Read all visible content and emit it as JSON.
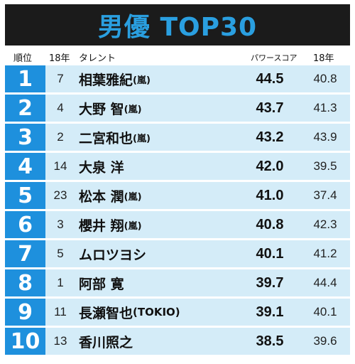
{
  "title": "男優 TOP30",
  "headers": {
    "rank": "順位",
    "prev_year": "18年",
    "talent": "タレント",
    "power_score": "パワースコア",
    "last_year": "18年"
  },
  "rows": [
    {
      "rank": "1",
      "prev": "7",
      "name": "相葉雅紀",
      "group": "(嵐)",
      "score": "44.5",
      "last": "40.8"
    },
    {
      "rank": "2",
      "prev": "4",
      "name": "大野 智",
      "group": "(嵐)",
      "score": "43.7",
      "last": "41.3"
    },
    {
      "rank": "3",
      "prev": "2",
      "name": "二宮和也",
      "group": "(嵐)",
      "score": "43.2",
      "last": "43.9"
    },
    {
      "rank": "4",
      "prev": "14",
      "name": "大泉 洋",
      "group": "",
      "score": "42.0",
      "last": "39.5"
    },
    {
      "rank": "5",
      "prev": "23",
      "name": "松本 潤",
      "group": "(嵐)",
      "score": "41.0",
      "last": "37.4"
    },
    {
      "rank": "6",
      "prev": "3",
      "name": "櫻井 翔",
      "group": "(嵐)",
      "score": "40.8",
      "last": "42.3"
    },
    {
      "rank": "7",
      "prev": "5",
      "name": "ムロツヨシ",
      "group": "",
      "score": "40.1",
      "last": "41.2"
    },
    {
      "rank": "8",
      "prev": "1",
      "name": "阿部 寛",
      "group": "",
      "score": "39.7",
      "last": "44.4"
    },
    {
      "rank": "9",
      "prev": "11",
      "name": "長瀬智也",
      "group": "(TOKIO)",
      "score": "39.1",
      "last": "40.1"
    },
    {
      "rank": "10",
      "prev": "13",
      "name": "香川照之",
      "group": "",
      "score": "38.5",
      "last": "39.6"
    }
  ]
}
